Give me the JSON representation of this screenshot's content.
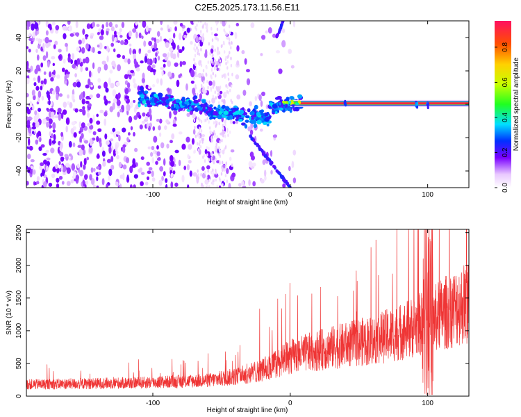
{
  "title": "C2E5.2025.173.11.56.E11",
  "colors": {
    "snr_line": "#ef3535",
    "ridge": "#e0304a",
    "frame": "#000000"
  },
  "chart_data": [
    {
      "type": "heatmap",
      "xlabel": "Height of straight line (km)",
      "ylabel": "Frequency (Hz)",
      "xlim": [
        -192,
        130
      ],
      "ylim": [
        -50,
        50
      ],
      "x_ticks": [
        -100,
        0,
        100
      ],
      "x_tick_labels": [
        "-100",
        "0",
        "100"
      ],
      "y_ticks": [
        -40,
        -20,
        0,
        20,
        40
      ],
      "y_tick_labels": [
        "-40",
        "-20",
        "0",
        "20",
        "40"
      ],
      "colorbar": {
        "label": "Normalized spectral amplitude",
        "range": [
          0,
          0.95
        ],
        "ticks": [
          0,
          0.2,
          0.4,
          0.6,
          0.8
        ],
        "tick_labels": [
          "0.0",
          "0.2",
          "0.4",
          "0.6",
          "0.8"
        ],
        "colormap": "rainbow"
      },
      "features": {
        "ridge": {
          "x_start": 0,
          "x_end": 130,
          "freq": 0.5,
          "amplitude": 0.95
        },
        "echo_bright_cluster": {
          "x_range": [
            -110,
            10
          ],
          "freq_range": [
            -20,
            8
          ]
        },
        "diverging_trails": [
          {
            "x_range": [
              -30,
              0
            ],
            "freq_start": -18,
            "freq_end": -50
          },
          {
            "x_range": [
              -10,
              -5
            ],
            "freq_start": 40,
            "freq_end": 50
          }
        ]
      }
    },
    {
      "type": "line",
      "xlabel": "Height of straight line (km)",
      "ylabel": "SNR (10 * v/v)",
      "xlim": [
        -192,
        130
      ],
      "ylim": [
        0,
        2550
      ],
      "x_ticks": [
        -100,
        0,
        100
      ],
      "x_tick_labels": [
        "-100",
        "0",
        "100"
      ],
      "y_ticks": [
        0,
        500,
        1000,
        1500,
        2000,
        2500
      ],
      "y_tick_labels": [
        "0",
        "500",
        "1000",
        "1500",
        "2000",
        "2500"
      ],
      "series": [
        {
          "color": "#ef3535",
          "trend": {
            "x": [
              -192,
              -150,
              -100,
              -60,
              -40,
              -20,
              0,
              20,
              40,
              60,
              80,
              95,
              100,
              110,
              130
            ],
            "y": [
              180,
              190,
              210,
              240,
              300,
              400,
              600,
              700,
              780,
              860,
              980,
              1100,
              1100,
              1250,
              1450
            ]
          }
        }
      ]
    }
  ]
}
